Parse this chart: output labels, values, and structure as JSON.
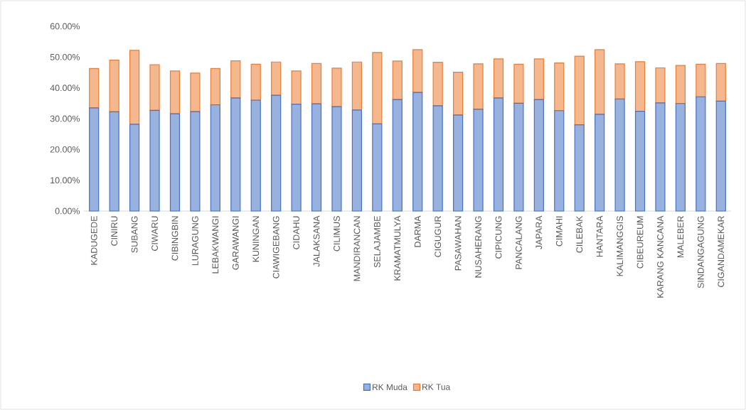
{
  "chart_data": {
    "type": "bar",
    "stacked": true,
    "categories": [
      "KADUGEDE",
      "CINIRU",
      "SUBANG",
      "CIWARU",
      "CIBINGBIN",
      "LURAGUNG",
      "LEBAKWANGI",
      "GARAWANGI",
      "KUNINGAN",
      "CIAWIGEBANG",
      "CIDAHU",
      "JALAKSANA",
      "CILIMUS",
      "MANDIRANCAN",
      "SELAJAMBE",
      "KRAMATMULYA",
      "DARMA",
      "CIGUGUR",
      "PASAWAHAN",
      "NUSAHERANG",
      "CIPICUNG",
      "PANCALANG",
      "JAPARA",
      "CIMAHI",
      "CILEBAK",
      "HANTARA",
      "KALIMANGGIS",
      "CIBEUREUM",
      "KARANG KANCANA",
      "MALEBER",
      "SINDANGAGUNG",
      "CIGANDAMEKAR"
    ],
    "series": [
      {
        "name": "RK Muda",
        "color": "#4472c4",
        "values": [
          33.5,
          32.2,
          28.2,
          32.7,
          31.6,
          32.3,
          34.5,
          36.7,
          36.0,
          37.6,
          34.7,
          34.8,
          33.9,
          32.8,
          28.3,
          36.2,
          38.5,
          34.2,
          31.2,
          33.1,
          36.7,
          35.0,
          36.2,
          32.6,
          28.0,
          31.4,
          36.4,
          32.4,
          35.1,
          34.9,
          37.1,
          35.7
        ]
      },
      {
        "name": "RK Tua",
        "color": "#ed7d31",
        "values": [
          12.8,
          16.8,
          24.0,
          14.8,
          13.9,
          12.5,
          11.8,
          12.1,
          11.7,
          10.8,
          10.8,
          13.1,
          12.5,
          15.6,
          23.2,
          12.5,
          13.9,
          14.1,
          13.9,
          14.7,
          12.7,
          12.7,
          13.2,
          15.5,
          22.3,
          21.0,
          11.4,
          16.1,
          11.4,
          12.4,
          10.6,
          12.2
        ]
      }
    ],
    "ylim": [
      0,
      60
    ],
    "yticks": [
      {
        "value": 0,
        "label": "0.00%"
      },
      {
        "value": 10,
        "label": "10.00%"
      },
      {
        "value": 20,
        "label": "20.00%"
      },
      {
        "value": 30,
        "label": "30.00%"
      },
      {
        "value": 40,
        "label": "40.00%"
      },
      {
        "value": 50,
        "label": "50.00%"
      },
      {
        "value": 60,
        "label": "60.00%"
      }
    ],
    "grid": false,
    "legend": "bottom"
  }
}
